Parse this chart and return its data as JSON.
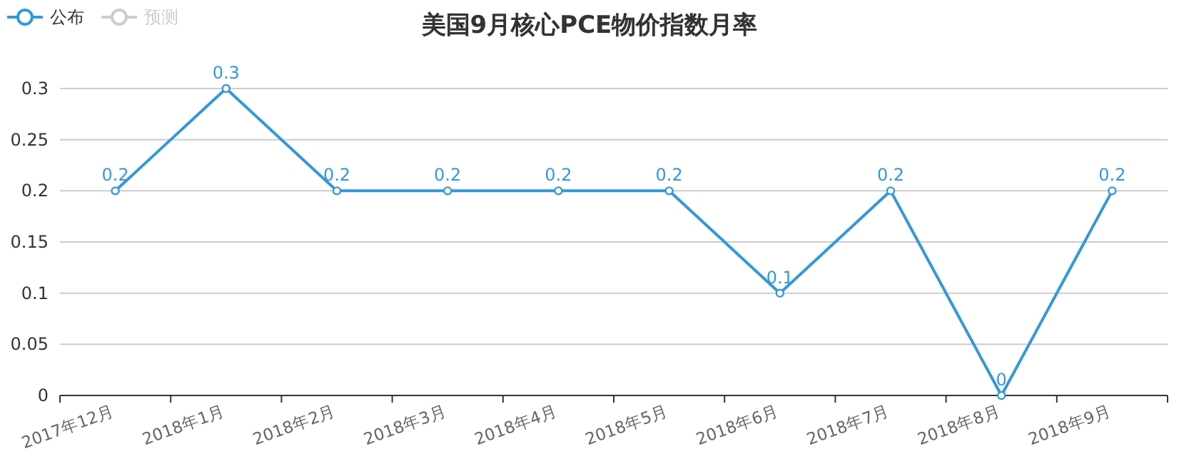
{
  "chart_data": {
    "type": "line",
    "title": "美国9月核心PCE物价指数月率",
    "categories": [
      "2017年12月",
      "2018年1月",
      "2018年2月",
      "2018年3月",
      "2018年4月",
      "2018年5月",
      "2018年6月",
      "2018年7月",
      "2018年8月",
      "2018年9月"
    ],
    "series": [
      {
        "name": "公布",
        "color": "#3398db",
        "values": [
          0.2,
          0.3,
          0.2,
          0.2,
          0.2,
          0.2,
          0.1,
          0.2,
          0,
          0.2
        ]
      },
      {
        "name": "预测",
        "color": "#cccccc",
        "values": [
          null,
          null,
          null,
          null,
          null,
          null,
          null,
          null,
          null,
          null
        ]
      }
    ],
    "ylim": [
      0,
      0.3
    ],
    "yticks": [
      0,
      0.05,
      0.1,
      0.15,
      0.2,
      0.25,
      0.3
    ],
    "grid": "y",
    "legend": "top left",
    "marker": "circle",
    "data_labels": true
  }
}
